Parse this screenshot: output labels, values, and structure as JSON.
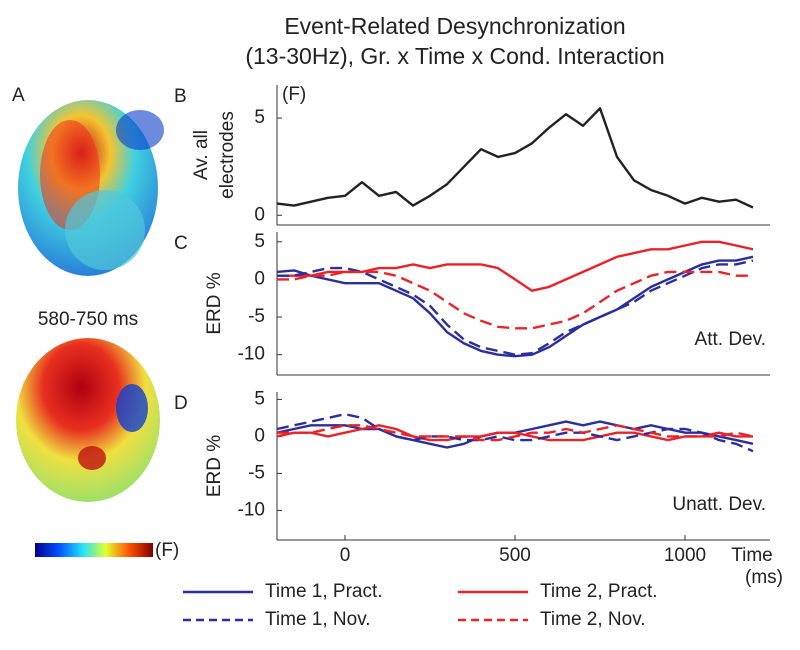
{
  "figure": {
    "title": [
      "Event-Related Desynchronization",
      "(13-30Hz), Gr. x Time x Cond. Interaction"
    ],
    "panel_a": {
      "label": "A",
      "time_window": "580-750 ms",
      "colorbar_label": "(F)"
    }
  },
  "chart_data": [
    {
      "type": "line",
      "label": "B",
      "unit": "(F)",
      "ylabel": [
        "Av. all",
        "electrodes"
      ],
      "x": [
        -200,
        -150,
        -100,
        -50,
        0,
        50,
        100,
        150,
        200,
        250,
        300,
        350,
        400,
        450,
        500,
        550,
        600,
        650,
        700,
        750,
        800,
        850,
        900,
        950,
        1000,
        1050,
        1100,
        1150,
        1200
      ],
      "xlim": [
        -200,
        1250
      ],
      "ylim": [
        -0.5,
        6.7
      ],
      "yticks": [
        0,
        5
      ],
      "series": [
        {
          "color": "#222222",
          "dash": false,
          "values": [
            0.6,
            0.5,
            0.7,
            0.9,
            1.0,
            1.7,
            1.0,
            1.2,
            0.5,
            1.0,
            1.6,
            2.5,
            3.4,
            3.0,
            3.2,
            3.7,
            4.5,
            5.2,
            4.6,
            5.5,
            3.0,
            1.8,
            1.3,
            1.0,
            0.6,
            0.9,
            0.7,
            0.8,
            0.4
          ]
        }
      ]
    },
    {
      "type": "line",
      "label": "C",
      "ylabel": [
        "ERD %"
      ],
      "annotation": "Att. Dev.",
      "x": [
        -200,
        -150,
        -100,
        -50,
        0,
        50,
        100,
        150,
        200,
        250,
        300,
        350,
        400,
        450,
        500,
        550,
        600,
        650,
        700,
        750,
        800,
        850,
        900,
        950,
        1000,
        1050,
        1100,
        1150,
        1200
      ],
      "xlim": [
        -200,
        1250
      ],
      "ylim": [
        -12.7,
        6.3
      ],
      "yticks": [
        5,
        0,
        -5,
        -10
      ],
      "series": [
        {
          "name": "Time 1, Pract.",
          "color": "#2a2f9a",
          "dash": false,
          "values": [
            1,
            1.2,
            0.5,
            0,
            -0.5,
            -0.5,
            -0.5,
            -1.5,
            -2.5,
            -4.5,
            -7,
            -8.5,
            -9.5,
            -10,
            -10.2,
            -10,
            -9,
            -7.5,
            -6,
            -5,
            -4,
            -2.5,
            -1,
            0,
            1,
            2,
            2.5,
            2.5,
            3
          ]
        },
        {
          "name": "Time 2, Pract.",
          "color": "#e8242a",
          "dash": false,
          "values": [
            0.5,
            0.5,
            0.5,
            1,
            1,
            1,
            1.5,
            1.5,
            2,
            1.5,
            2,
            2,
            2,
            1.5,
            0,
            -1.5,
            -1,
            0,
            1,
            2,
            3,
            3.5,
            4,
            4,
            4.5,
            5,
            5,
            4.5,
            4
          ]
        },
        {
          "name": "Time 1, Nov.",
          "color": "#2a2f9a",
          "dash": true,
          "values": [
            0.5,
            0.5,
            1,
            1.5,
            1.5,
            1,
            0,
            -1,
            -2,
            -3.5,
            -6,
            -8,
            -9,
            -9.5,
            -10,
            -9.8,
            -8.5,
            -7,
            -6,
            -5,
            -4,
            -3,
            -1.5,
            -0.5,
            0.5,
            1.5,
            2,
            2,
            2.5
          ]
        },
        {
          "name": "Time 2, Nov.",
          "color": "#e8242a",
          "dash": true,
          "values": [
            0,
            0,
            0.5,
            0.5,
            1,
            1,
            1,
            0.5,
            -0.5,
            -1.5,
            -3,
            -4.5,
            -5.5,
            -6.3,
            -6.5,
            -6.5,
            -6,
            -5.5,
            -4.5,
            -3,
            -1.5,
            -0.5,
            0.5,
            1,
            1,
            1,
            1,
            0.5,
            0.5
          ]
        }
      ]
    },
    {
      "type": "line",
      "label": "D",
      "ylabel": [
        "ERD %"
      ],
      "annotation": "Unatt. Dev.",
      "xlabel": [
        "Time",
        "(ms)"
      ],
      "x": [
        -200,
        -150,
        -100,
        -50,
        0,
        50,
        100,
        150,
        200,
        250,
        300,
        350,
        400,
        450,
        500,
        550,
        600,
        650,
        700,
        750,
        800,
        850,
        900,
        950,
        1000,
        1050,
        1100,
        1150,
        1200
      ],
      "xlim": [
        -200,
        1250
      ],
      "xticks": [
        0,
        500,
        1000
      ],
      "ylim": [
        -14,
        6
      ],
      "yticks": [
        5,
        0,
        -5,
        -10
      ],
      "series": [
        {
          "color": "#2a2f9a",
          "dash": false,
          "values": [
            0.5,
            1,
            1.5,
            1.5,
            1.5,
            1,
            1,
            0,
            -0.5,
            -1,
            -1.5,
            -1,
            0,
            0.5,
            0.5,
            1,
            1.5,
            2,
            1.5,
            2,
            1.5,
            1,
            1.5,
            1,
            0.5,
            0.5,
            0,
            -0.5,
            -1
          ]
        },
        {
          "color": "#e8242a",
          "dash": false,
          "values": [
            0,
            0.5,
            0.5,
            0,
            0.5,
            1,
            1.5,
            1,
            0,
            -0.5,
            -0.5,
            0,
            0,
            0.5,
            0.5,
            0,
            -0.5,
            -0.5,
            -0.5,
            0,
            0.5,
            0.5,
            0,
            -0.5,
            0,
            0,
            0.5,
            0,
            0
          ]
        },
        {
          "color": "#2a2f9a",
          "dash": true,
          "values": [
            1,
            1.5,
            2,
            2.5,
            3,
            2.5,
            1,
            0,
            -0.5,
            0,
            0,
            -0.5,
            -0.5,
            0,
            -0.5,
            -0.5,
            0,
            0.5,
            0.5,
            0,
            -0.5,
            0,
            0.5,
            1,
            1,
            0.5,
            -0.5,
            -1,
            -2
          ]
        },
        {
          "color": "#e8242a",
          "dash": true,
          "values": [
            0.5,
            0.5,
            0.5,
            1,
            1.5,
            1.5,
            1,
            0.5,
            0,
            0,
            0,
            0,
            -0.5,
            -0.5,
            0,
            0.5,
            0.5,
            1,
            0.5,
            1,
            1.5,
            1,
            0.5,
            0,
            0,
            0,
            0,
            0.5,
            0
          ]
        }
      ]
    }
  ]
}
